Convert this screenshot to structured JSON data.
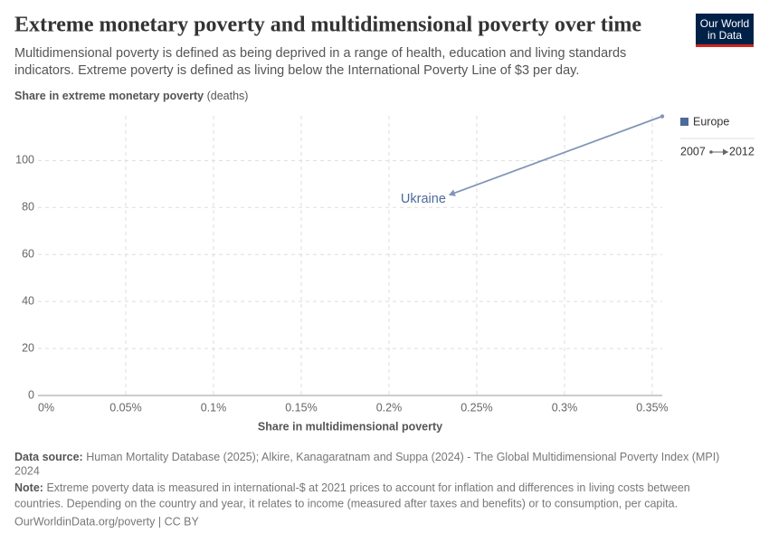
{
  "chart_data": {
    "type": "connected-scatter",
    "title": "Extreme monetary poverty and multidimensional poverty over time",
    "subtitle": [
      "Multidimensional poverty is defined as being deprived in a range of health, education and living standards",
      "indicators. Extreme poverty is defined as living below the International Poverty Line of $3 per day."
    ],
    "y_label": "Share in extreme monetary poverty",
    "y_unit": "(deaths)",
    "x_label": "Share in multidimensional poverty",
    "xlim": [
      0,
      0.3557
    ],
    "ylim": [
      0,
      119
    ],
    "xticks": [
      {
        "value": 0,
        "label": "0%"
      },
      {
        "value": 0.05,
        "label": "0.05%"
      },
      {
        "value": 0.1,
        "label": "0.1%"
      },
      {
        "value": 0.15,
        "label": "0.15%"
      },
      {
        "value": 0.2,
        "label": "0.2%"
      },
      {
        "value": 0.25,
        "label": "0.25%"
      },
      {
        "value": 0.3,
        "label": "0.3%"
      },
      {
        "value": 0.35,
        "label": "0.35%"
      }
    ],
    "yticks": [
      0,
      20,
      40,
      60,
      80,
      100
    ],
    "grid": true,
    "legend": {
      "name": "Europe",
      "color": "#4c6a9c"
    },
    "years": [
      "2007",
      "2012"
    ],
    "series": [
      {
        "name": "Ukraine",
        "color": "#8295b8",
        "label_color": "#4c6a9c",
        "x": [
          0.3557,
          0.2345
        ],
        "y": [
          118.8,
          85.4
        ]
      }
    ],
    "logo": [
      "Our World",
      "in Data"
    ],
    "source_label": "Data source:",
    "source": [
      "Human Mortality Database (2025); Alkire, Kanagaratnam and Suppa (2024) - The Global Multidimensional Poverty Index (MPI)",
      "2024"
    ],
    "note_label": "Note:",
    "note": [
      "Extreme poverty data is measured in international-$ at 2021 prices to account for inflation and differences in living costs between",
      "countries. Depending on the country and year, it relates to income (measured after taxes and benefits) or to consumption, per capita."
    ],
    "footer": "OurWorldinData.org/poverty | CC BY"
  }
}
